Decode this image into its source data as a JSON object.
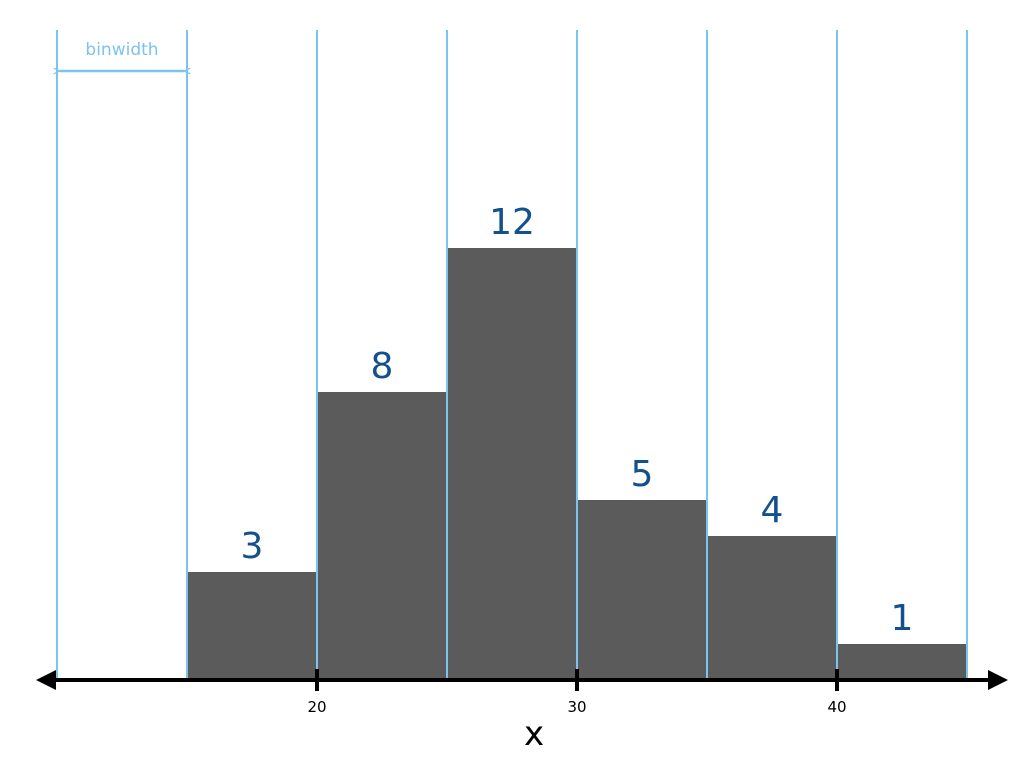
{
  "chart_data": {
    "type": "bar",
    "title": "",
    "xlabel": "x",
    "ylabel": "",
    "xlim": [
      10,
      45
    ],
    "binwidth": 5,
    "bin_edges": [
      10,
      15,
      20,
      25,
      30,
      35,
      40,
      45
    ],
    "bins": [
      {
        "start": 15,
        "end": 20,
        "count": 3
      },
      {
        "start": 20,
        "end": 25,
        "count": 8
      },
      {
        "start": 25,
        "end": 30,
        "count": 12
      },
      {
        "start": 30,
        "end": 35,
        "count": 5
      },
      {
        "start": 35,
        "end": 40,
        "count": 4
      },
      {
        "start": 40,
        "end": 45,
        "count": 1
      }
    ],
    "x_ticks": [
      20,
      30,
      40
    ],
    "annotation": "binwidth",
    "grid": false,
    "legend": "none",
    "colors": {
      "bar": "#5b5b5b",
      "bin_line": "#7cc3ef",
      "count_label": "#14508c",
      "axis": "#000000"
    }
  }
}
